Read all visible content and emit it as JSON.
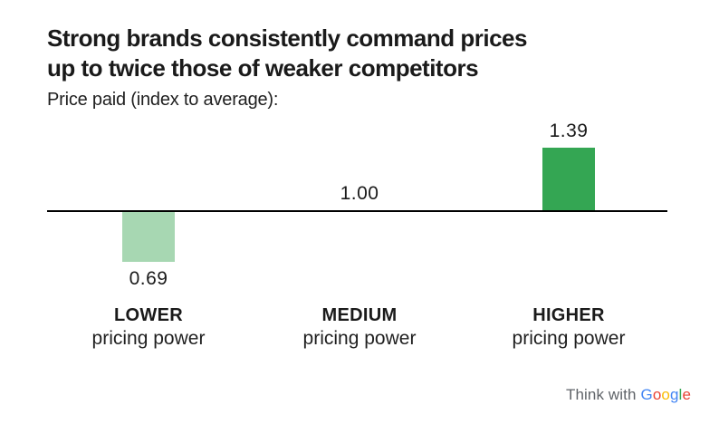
{
  "header": {
    "title_line1": "Strong brands consistently command prices",
    "title_line2": "up to twice those of weaker competitors",
    "subtitle": "Price paid (index to average):"
  },
  "chart_data": {
    "type": "bar",
    "title": "Strong brands consistently command prices up to twice those of weaker competitors",
    "subtitle": "Price paid (index to average):",
    "categories": [
      "LOWER pricing power",
      "MEDIUM pricing power",
      "HIGHER pricing power"
    ],
    "values": [
      0.69,
      1.0,
      1.39
    ],
    "baseline": 1.0,
    "value_labels": [
      "0.69",
      "1.00",
      "1.39"
    ],
    "bar_colors": [
      "#A7D7B2",
      "none",
      "#34A653"
    ],
    "axis_color": "#000000",
    "grid": false,
    "legend": "none",
    "orientation": "vertical",
    "note": "Bars drawn as deviation from the 1.00 index baseline; MEDIUM has no bar, only the 1.00 label on the baseline"
  },
  "columns": [
    {
      "tier": "LOWER",
      "tier_sub": "pricing power",
      "value_label": "0.69"
    },
    {
      "tier": "MEDIUM",
      "tier_sub": "pricing power",
      "value_label": "1.00"
    },
    {
      "tier": "HIGHER",
      "tier_sub": "pricing power",
      "value_label": "1.39"
    }
  ],
  "footer": {
    "brand_prefix": "Think with",
    "brand_prefix_color": "#5F6368",
    "brand_name": "Google",
    "google_letters": [
      {
        "char": "G",
        "color": "#4285F4"
      },
      {
        "char": "o",
        "color": "#EA4335"
      },
      {
        "char": "o",
        "color": "#FBBC05"
      },
      {
        "char": "g",
        "color": "#4285F4"
      },
      {
        "char": "l",
        "color": "#34A853"
      },
      {
        "char": "e",
        "color": "#EA4335"
      }
    ]
  }
}
